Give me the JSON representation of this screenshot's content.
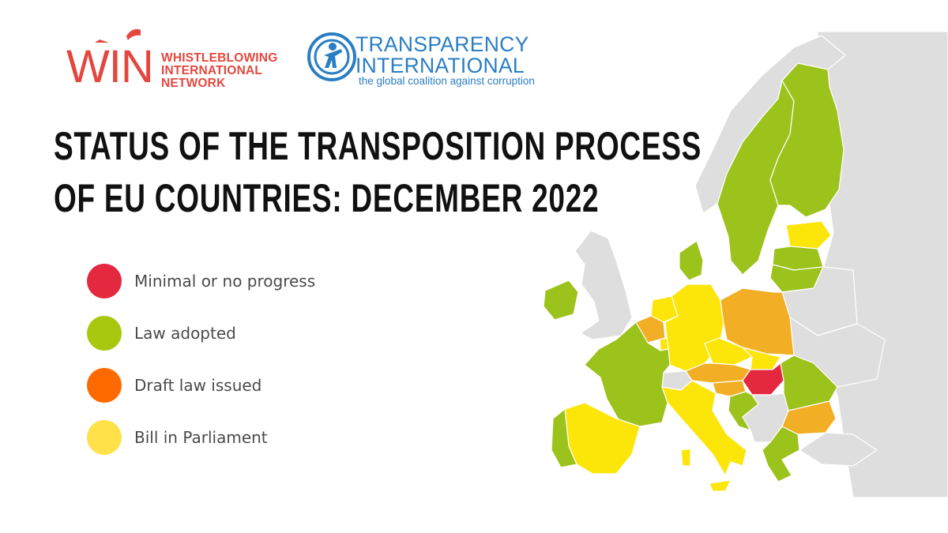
{
  "logos": {
    "win": {
      "letters": "WIN",
      "tagline": [
        "WHISTLEBLOWING",
        "INTERNATIONAL",
        "NETWORK"
      ],
      "icon": "whistle-icon"
    },
    "ti": {
      "name": [
        "TRANSPARENCY",
        "INTERNATIONAL"
      ],
      "tagline": "the global coalition against corruption",
      "icon": "globe-icon"
    }
  },
  "title": {
    "line1": "STATUS OF THE TRANSPOSITION PROCESS",
    "line2": "OF EU COUNTRIES: DECEMBER 2022"
  },
  "legend": {
    "items": [
      {
        "label": "Minimal or no progress",
        "color": "#e4283f"
      },
      {
        "label": "Law adopted",
        "color": "#a8c70f"
      },
      {
        "label": "Draft law issued",
        "color": "#ff6a00"
      },
      {
        "label": "Bill in Parliament",
        "color": "#ffe14a"
      }
    ]
  },
  "map": {
    "colors": {
      "minimal": "#e4283f",
      "law_adopted": "#9cc21c",
      "draft": "#f2ae24",
      "bill": "#fce509",
      "non_eu": "#dedede",
      "border": "#ffffff"
    },
    "countries": [
      {
        "name": "Norway",
        "status": "non_eu"
      },
      {
        "name": "Sweden",
        "status": "law_adopted"
      },
      {
        "name": "Finland",
        "status": "law_adopted"
      },
      {
        "name": "Denmark",
        "status": "law_adopted"
      },
      {
        "name": "Estonia",
        "status": "bill"
      },
      {
        "name": "Latvia",
        "status": "law_adopted"
      },
      {
        "name": "Lithuania",
        "status": "law_adopted"
      },
      {
        "name": "Ireland",
        "status": "law_adopted"
      },
      {
        "name": "United Kingdom",
        "status": "non_eu"
      },
      {
        "name": "Netherlands",
        "status": "bill"
      },
      {
        "name": "Belgium",
        "status": "draft"
      },
      {
        "name": "Luxembourg",
        "status": "bill"
      },
      {
        "name": "Germany",
        "status": "bill"
      },
      {
        "name": "Poland",
        "status": "draft"
      },
      {
        "name": "Czechia",
        "status": "bill"
      },
      {
        "name": "Slovakia",
        "status": "bill"
      },
      {
        "name": "Austria",
        "status": "draft"
      },
      {
        "name": "Hungary",
        "status": "minimal"
      },
      {
        "name": "Slovenia",
        "status": "draft"
      },
      {
        "name": "Croatia",
        "status": "law_adopted"
      },
      {
        "name": "Romania",
        "status": "law_adopted"
      },
      {
        "name": "Bulgaria",
        "status": "draft"
      },
      {
        "name": "Greece",
        "status": "law_adopted"
      },
      {
        "name": "France",
        "status": "law_adopted"
      },
      {
        "name": "Spain",
        "status": "bill"
      },
      {
        "name": "Portugal",
        "status": "law_adopted"
      },
      {
        "name": "Italy",
        "status": "bill"
      },
      {
        "name": "Switzerland",
        "status": "non_eu"
      },
      {
        "name": "Belarus",
        "status": "non_eu"
      },
      {
        "name": "Ukraine",
        "status": "non_eu"
      },
      {
        "name": "Russia",
        "status": "non_eu"
      },
      {
        "name": "Balkans",
        "status": "non_eu"
      },
      {
        "name": "Turkey",
        "status": "non_eu"
      }
    ]
  }
}
